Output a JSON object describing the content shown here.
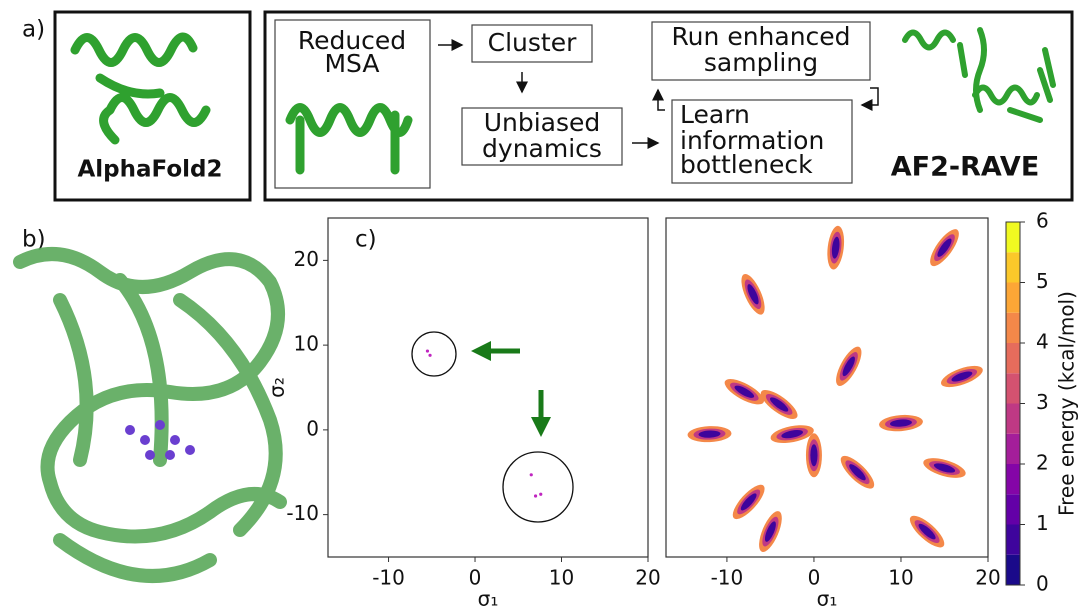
{
  "panel_labels": [
    "a)",
    "b)",
    "c)"
  ],
  "panel_a": {
    "alphafold_label": "AlphaFold2",
    "boxes": [
      [
        "Reduced",
        "MSA"
      ],
      [
        "Cluster"
      ],
      [
        "Unbiased",
        "dynamics"
      ],
      [
        "Run enhanced",
        "sampling"
      ],
      [
        "Learn",
        "information",
        "bottleneck"
      ]
    ],
    "af2rave_label": "AF2-RAVE"
  },
  "chart_data": [
    {
      "type": "scatter",
      "x": [
        -5.5,
        -5.2,
        7.0,
        6.5,
        7.6
      ],
      "y": [
        9.3,
        8.8,
        -7.8,
        -5.3,
        -7.6
      ],
      "color": "#c026c0",
      "xlim": [
        -17,
        20
      ],
      "ylim": [
        -15,
        25
      ],
      "xticks": [
        -10,
        0,
        10,
        20
      ],
      "yticks": [
        -10,
        0,
        10,
        20
      ],
      "xlabel": "σ₁",
      "ylabel": "σ₂"
    },
    {
      "type": "contour",
      "x": [
        2.5,
        15,
        -7,
        4,
        -8,
        -12,
        -4,
        -2.5,
        17,
        10,
        0,
        -5,
        5,
        13,
        15,
        -7.5
      ],
      "y": [
        21.5,
        21.5,
        16,
        7.5,
        4.5,
        -0.5,
        3,
        -0.5,
        6.3,
        0.8,
        -3,
        -12,
        -5,
        -12,
        -4.5,
        -8.5
      ],
      "xlim": [
        -17,
        20
      ],
      "ylim": [
        -15,
        25
      ],
      "xticks": [
        -10,
        0,
        10,
        20
      ],
      "xlabel": "σ₁",
      "colorbar": {
        "label": "Free energy (kcal/mol)",
        "lim": [
          0,
          6
        ],
        "ticks": [
          0,
          1,
          2,
          3,
          4,
          5,
          6
        ],
        "colors": [
          "#1a0a8a",
          "#3e049c",
          "#6300a7",
          "#8405a7",
          "#a41e9a",
          "#bf3984",
          "#d45270",
          "#e66c5c",
          "#f48849",
          "#fca636",
          "#fbc82a",
          "#f0f921"
        ]
      }
    }
  ]
}
